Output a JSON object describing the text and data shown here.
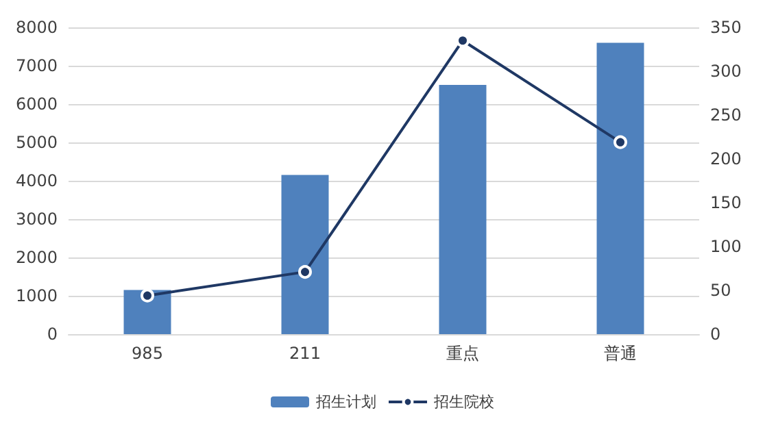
{
  "chart_data": {
    "type": "bar",
    "categories": [
      "985",
      "211",
      "重点",
      "普通"
    ],
    "series": [
      {
        "name": "招生计划",
        "color": "#4f81bd",
        "values": [
          1150,
          4150,
          6500,
          7600
        ]
      },
      {
        "name": "招生院校",
        "type": "line",
        "axis": "y2",
        "color": "#1f3864",
        "marker": "circle",
        "values": [
          44,
          71,
          335,
          219
        ]
      }
    ],
    "ylim": [
      0,
      8000
    ],
    "yticks": [
      0,
      1000,
      2000,
      3000,
      4000,
      5000,
      6000,
      7000,
      8000
    ],
    "y2lim": [
      0,
      350
    ],
    "y2ticks": [
      0,
      50,
      100,
      150,
      200,
      250,
      300,
      350
    ],
    "grid": "y",
    "legend": "bottom"
  }
}
